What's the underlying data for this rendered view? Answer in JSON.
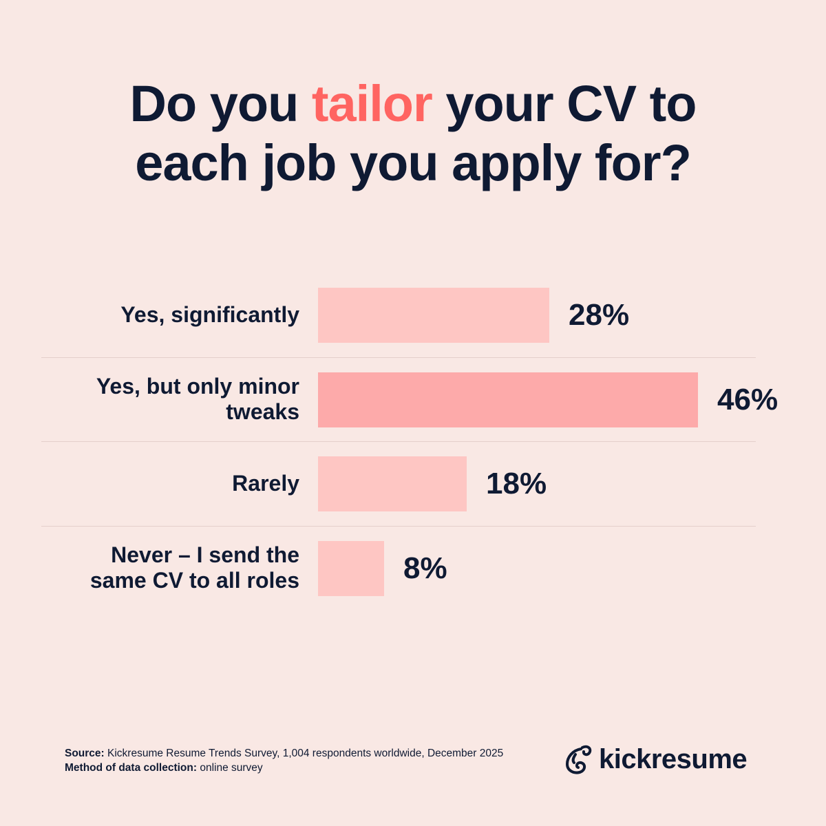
{
  "title": {
    "before": "Do you ",
    "accent": "tailor",
    "after_line1": " your CV to",
    "line2": "each job you apply for?"
  },
  "colors": {
    "background": "#f9e8e4",
    "bar": "#fec6c3",
    "bar_highlight": "#fdaaaa",
    "text": "#0f1a33",
    "accent": "#ff6461"
  },
  "chart_data": {
    "type": "bar",
    "orientation": "horizontal",
    "categories": [
      "Yes, significantly",
      "Yes, but only minor tweaks",
      "Rarely",
      "Never – I send the same CV to all roles"
    ],
    "values": [
      28,
      46,
      18,
      8
    ],
    "value_labels": [
      "28%",
      "46%",
      "18%",
      "8%"
    ],
    "highlighted_index": 1,
    "unit": "%",
    "grid": false
  },
  "footer": {
    "source_label": "Source:",
    "source_text": " Kickresume Resume Trends Survey, 1,004 respondents worldwide, December 2025",
    "method_label": "Method of data collection:",
    "method_text": " online survey"
  },
  "logo": {
    "text": "kickresume",
    "icon": "kickresume-chameleon-icon"
  }
}
